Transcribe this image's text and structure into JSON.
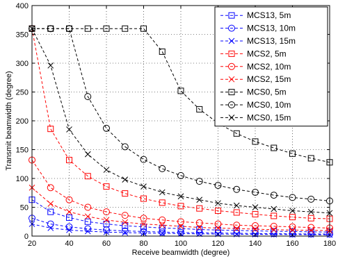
{
  "chart_data": {
    "type": "line",
    "title": "",
    "xlabel": "Receive beamwidth (degree)",
    "ylabel": "Transmit beamwidth (degree)",
    "xlim": [
      20,
      180
    ],
    "ylim": [
      0,
      400
    ],
    "xticks": [
      20,
      40,
      60,
      80,
      100,
      120,
      140,
      160,
      180
    ],
    "yticks": [
      0,
      50,
      100,
      150,
      200,
      250,
      300,
      350,
      400
    ],
    "grid": true,
    "legend_position": "top-right",
    "x": [
      20,
      30,
      40,
      50,
      60,
      70,
      80,
      90,
      100,
      110,
      120,
      130,
      140,
      150,
      160,
      170,
      180
    ],
    "series": [
      {
        "name": "MCS13, 5m",
        "color": "#0000ff",
        "marker": "square",
        "values": [
          63,
          42,
          32,
          25,
          21,
          18,
          16,
          14,
          13,
          11.5,
          10.5,
          9.7,
          9,
          8.4,
          7.9,
          7.4,
          7
        ]
      },
      {
        "name": "MCS13, 10m",
        "color": "#0000ff",
        "marker": "circle",
        "values": [
          31,
          21,
          16,
          12.6,
          10.5,
          9,
          7.9,
          7,
          6.3,
          5.7,
          5.3,
          4.9,
          4.5,
          4.2,
          3.9,
          3.7,
          3.5
        ]
      },
      {
        "name": "MCS13, 15m",
        "color": "#0000ff",
        "marker": "x",
        "values": [
          21,
          14,
          10.5,
          8.4,
          7,
          6,
          5.3,
          4.7,
          4.2,
          3.8,
          3.5,
          3.2,
          3,
          2.8,
          2.6,
          2.5,
          2.3
        ]
      },
      {
        "name": "MCS2, 5m",
        "color": "#ff0000",
        "marker": "square",
        "values": [
          360,
          186,
          132,
          104,
          86,
          74,
          65,
          58,
          52,
          48,
          44,
          41,
          38,
          35,
          33,
          31,
          30
        ]
      },
      {
        "name": "MCS2, 10m",
        "color": "#ff0000",
        "marker": "circle",
        "values": [
          132,
          84,
          63,
          50,
          42,
          36,
          31,
          28,
          25,
          23,
          21,
          19,
          18,
          17,
          16,
          15,
          14
        ]
      },
      {
        "name": "MCS2, 15m",
        "color": "#ff0000",
        "marker": "x",
        "values": [
          84,
          56,
          42,
          34,
          28,
          24,
          21,
          19,
          17,
          15,
          14,
          13,
          12,
          11,
          10.5,
          10,
          9.5
        ]
      },
      {
        "name": "MCS0, 5m",
        "color": "#000000",
        "marker": "square",
        "values": [
          360,
          360,
          360,
          360,
          360,
          360,
          360,
          320,
          252,
          220,
          196,
          178,
          164,
          153,
          143,
          135,
          128
        ]
      },
      {
        "name": "MCS0, 10m",
        "color": "#000000",
        "marker": "circle",
        "values": [
          360,
          360,
          360,
          242,
          187,
          155,
          133,
          117,
          105,
          95,
          88,
          81,
          76,
          71,
          67,
          64,
          61
        ]
      },
      {
        "name": "MCS0, 15m",
        "color": "#000000",
        "marker": "x",
        "values": [
          360,
          296,
          185,
          142,
          115,
          98,
          86,
          76,
          69,
          63,
          57,
          53,
          50,
          47,
          44,
          42,
          40
        ]
      }
    ]
  }
}
